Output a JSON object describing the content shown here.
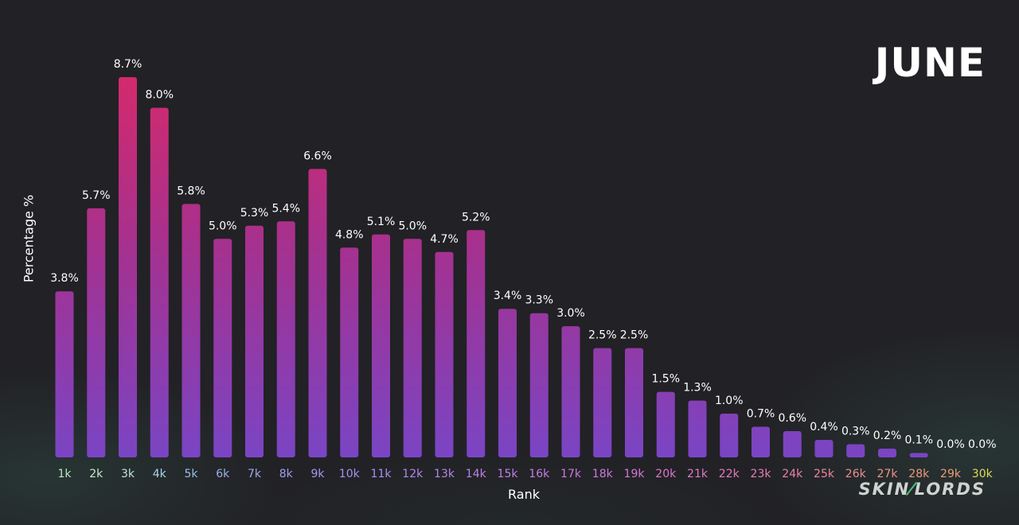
{
  "month": "JUNE",
  "brand": {
    "part1": "SKIN",
    "accent": "⁄",
    "part2": "LORDS"
  },
  "chart_data": {
    "type": "bar",
    "xlabel": "Rank",
    "ylabel": "Percentage %",
    "ylim": [
      0,
      9
    ],
    "grid": false,
    "categories": [
      "1k",
      "2k",
      "3k",
      "4k",
      "5k",
      "6k",
      "7k",
      "8k",
      "9k",
      "10k",
      "11k",
      "12k",
      "13k",
      "14k",
      "15k",
      "16k",
      "17k",
      "18k",
      "19k",
      "20k",
      "21k",
      "22k",
      "23k",
      "24k",
      "25k",
      "26k",
      "27k",
      "28k",
      "29k",
      "30k"
    ],
    "values": [
      3.8,
      5.7,
      8.7,
      8.0,
      5.8,
      5.0,
      5.3,
      5.4,
      6.6,
      4.8,
      5.1,
      5.0,
      4.7,
      5.2,
      3.4,
      3.3,
      3.0,
      2.5,
      2.5,
      1.5,
      1.3,
      1.0,
      0.7,
      0.6,
      0.4,
      0.3,
      0.2,
      0.1,
      0.0,
      0.0
    ],
    "value_labels": [
      "3.8%",
      "5.7%",
      "8.7%",
      "8.0%",
      "5.8%",
      "5.0%",
      "5.3%",
      "5.4%",
      "6.6%",
      "4.8%",
      "5.1%",
      "5.0%",
      "4.7%",
      "5.2%",
      "3.4%",
      "3.3%",
      "3.0%",
      "2.5%",
      "2.5%",
      "1.5%",
      "1.3%",
      "1.0%",
      "0.7%",
      "0.6%",
      "0.4%",
      "0.3%",
      "0.2%",
      "0.1%",
      "0.0%",
      "0.0%"
    ],
    "tick_colors": [
      "#b9e6c2",
      "#c4ebcb",
      "#bfe2e0",
      "#a9d4ea",
      "#9bbcea",
      "#99afec",
      "#9da8ee",
      "#a09eef",
      "#a597ef",
      "#a890ee",
      "#ac8cee",
      "#b087ec",
      "#b684ea",
      "#bc81e8",
      "#c27de6",
      "#c77ae2",
      "#cc77df",
      "#d276db",
      "#d776d6",
      "#dc76d0",
      "#e177c8",
      "#e579be",
      "#e87cb3",
      "#eb80a8",
      "#ed869c",
      "#ee8c90",
      "#ef9384",
      "#ef9a7a",
      "#ef9c72",
      "#dcdc5a"
    ],
    "bar_gradient": {
      "top": "#d42a6c",
      "mid": "#a5318f",
      "bottom": "#7a45c4"
    }
  }
}
